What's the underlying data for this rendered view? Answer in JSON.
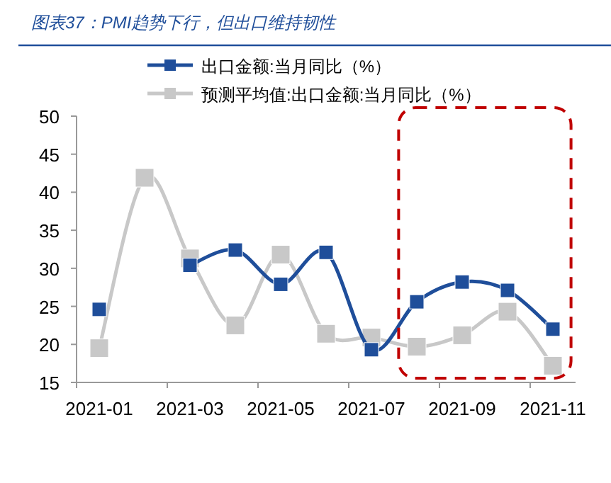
{
  "chart_data": {
    "type": "line",
    "title": "图表37：PMI趋势下行，但出口维持韧性",
    "categories": [
      "2021-01",
      null,
      "2021-03",
      null,
      "2021-05",
      null,
      "2021-07",
      null,
      "2021-09",
      null,
      "2021-11"
    ],
    "series": [
      {
        "name": "出口金额:当月同比（%）",
        "color": "#1f4e9a",
        "values": [
          24.6,
          null,
          30.4,
          32.4,
          27.9,
          32.1,
          19.3,
          25.6,
          28.2,
          27.1,
          22.0
        ]
      },
      {
        "name": "预测平均值:出口金额:当月同比（%）",
        "color": "#c8c8c8",
        "values": [
          19.5,
          41.9,
          31.3,
          22.5,
          31.8,
          21.4,
          20.9,
          19.7,
          21.2,
          24.3,
          17.2
        ]
      }
    ],
    "ylim": [
      15,
      50
    ],
    "yticks": [
      15,
      20,
      25,
      30,
      35,
      40,
      45,
      50
    ],
    "grid": false,
    "legend": "top",
    "marker": "square",
    "line_style": "solid"
  }
}
